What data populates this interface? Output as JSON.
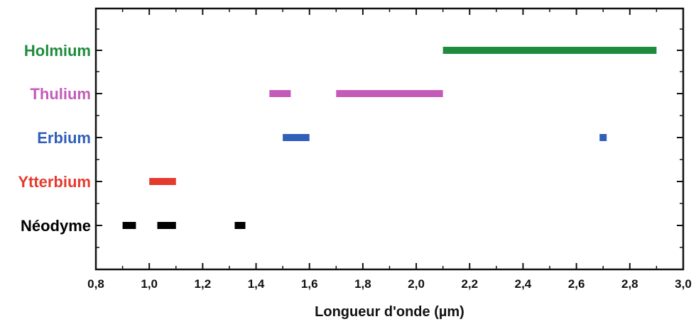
{
  "chart_data": {
    "type": "bar",
    "orientation": "horizontal-range",
    "title": "",
    "xlabel": "Longueur d'onde (µm)",
    "ylabel": "",
    "xlim": [
      0.8,
      3.0
    ],
    "x_ticks": [
      "0,8",
      "1,0",
      "1,2",
      "1,4",
      "1,6",
      "1,8",
      "2,0",
      "2,2",
      "2,4",
      "2,6",
      "2,8",
      "3,0"
    ],
    "grid": false,
    "legend": "none",
    "categories": [
      {
        "name": "Holmium",
        "color": "#1e8c3c",
        "ranges": [
          [
            2.1,
            2.9
          ]
        ]
      },
      {
        "name": "Thulium",
        "color": "#c45bb8",
        "ranges": [
          [
            1.45,
            1.53
          ],
          [
            1.7,
            2.1
          ]
        ]
      },
      {
        "name": "Erbium",
        "color": "#2f5fb9",
        "ranges": [
          [
            1.5,
            1.6
          ],
          [
            2.69,
            2.71
          ]
        ]
      },
      {
        "name": "Ytterbium",
        "color": "#e63a2e",
        "ranges": [
          [
            1.0,
            1.1
          ]
        ]
      },
      {
        "name": "Néodyme",
        "color": "#000000",
        "ranges": [
          [
            0.9,
            0.95
          ],
          [
            1.03,
            1.1
          ],
          [
            1.32,
            1.36
          ]
        ]
      }
    ]
  }
}
